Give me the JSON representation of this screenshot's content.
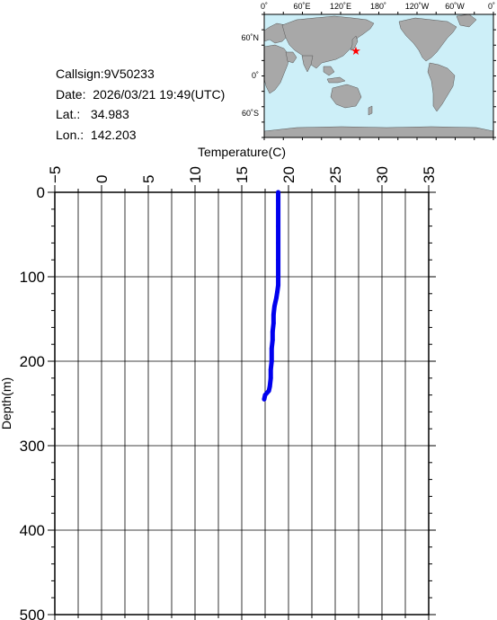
{
  "info": {
    "callsign": "Callsign:9V50233",
    "date": "Date:  2026/03/21 19:49(UTC)",
    "lat": "Lat.:   34.983",
    "lon": "Lon.:  142.203"
  },
  "map": {
    "top_labels": [
      "0˚",
      "60˚E",
      "120˚E",
      "180˚",
      "120˚W",
      "60˚W",
      "0˚"
    ],
    "lat_labels": [
      "60˚N",
      "0˚",
      "60˚S"
    ],
    "colors": {
      "ocean": "#cdeff8",
      "land": "#a8a8a8",
      "marker": "#ff0000"
    },
    "marker_icon": "star-icon"
  },
  "chart_data": {
    "type": "line",
    "title": "",
    "xlabel": "Temperature(C)",
    "ylabel": "Depth(m)",
    "xlim": [
      -5,
      35
    ],
    "ylim": [
      0,
      500
    ],
    "y_inverted": true,
    "x_axis_position": "top",
    "grid": true,
    "x_ticks": [
      -5,
      0,
      5,
      10,
      15,
      20,
      25,
      30,
      35
    ],
    "x_tick_labels": [
      "−5",
      "0",
      "5",
      "10",
      "15",
      "20",
      "25",
      "30",
      "35"
    ],
    "y_ticks": [
      0,
      100,
      200,
      300,
      400,
      500
    ],
    "y_tick_labels": [
      "0",
      "100",
      "200",
      "300",
      "400",
      "500"
    ],
    "line_color": "#0000ee",
    "series": [
      {
        "x": [
          18.9,
          18.9,
          18.9,
          18.9,
          18.9,
          18.9,
          18.9,
          18.9,
          18.8,
          18.7,
          18.5,
          18.4,
          18.4,
          18.3,
          18.3,
          18.2,
          18.2,
          18.1,
          18.1,
          18.0,
          17.9,
          17.5,
          17.4
        ],
        "y": [
          0,
          10,
          20,
          40,
          60,
          80,
          100,
          110,
          118,
          125,
          135,
          145,
          155,
          165,
          175,
          185,
          200,
          210,
          220,
          230,
          235,
          240,
          245
        ]
      }
    ]
  }
}
